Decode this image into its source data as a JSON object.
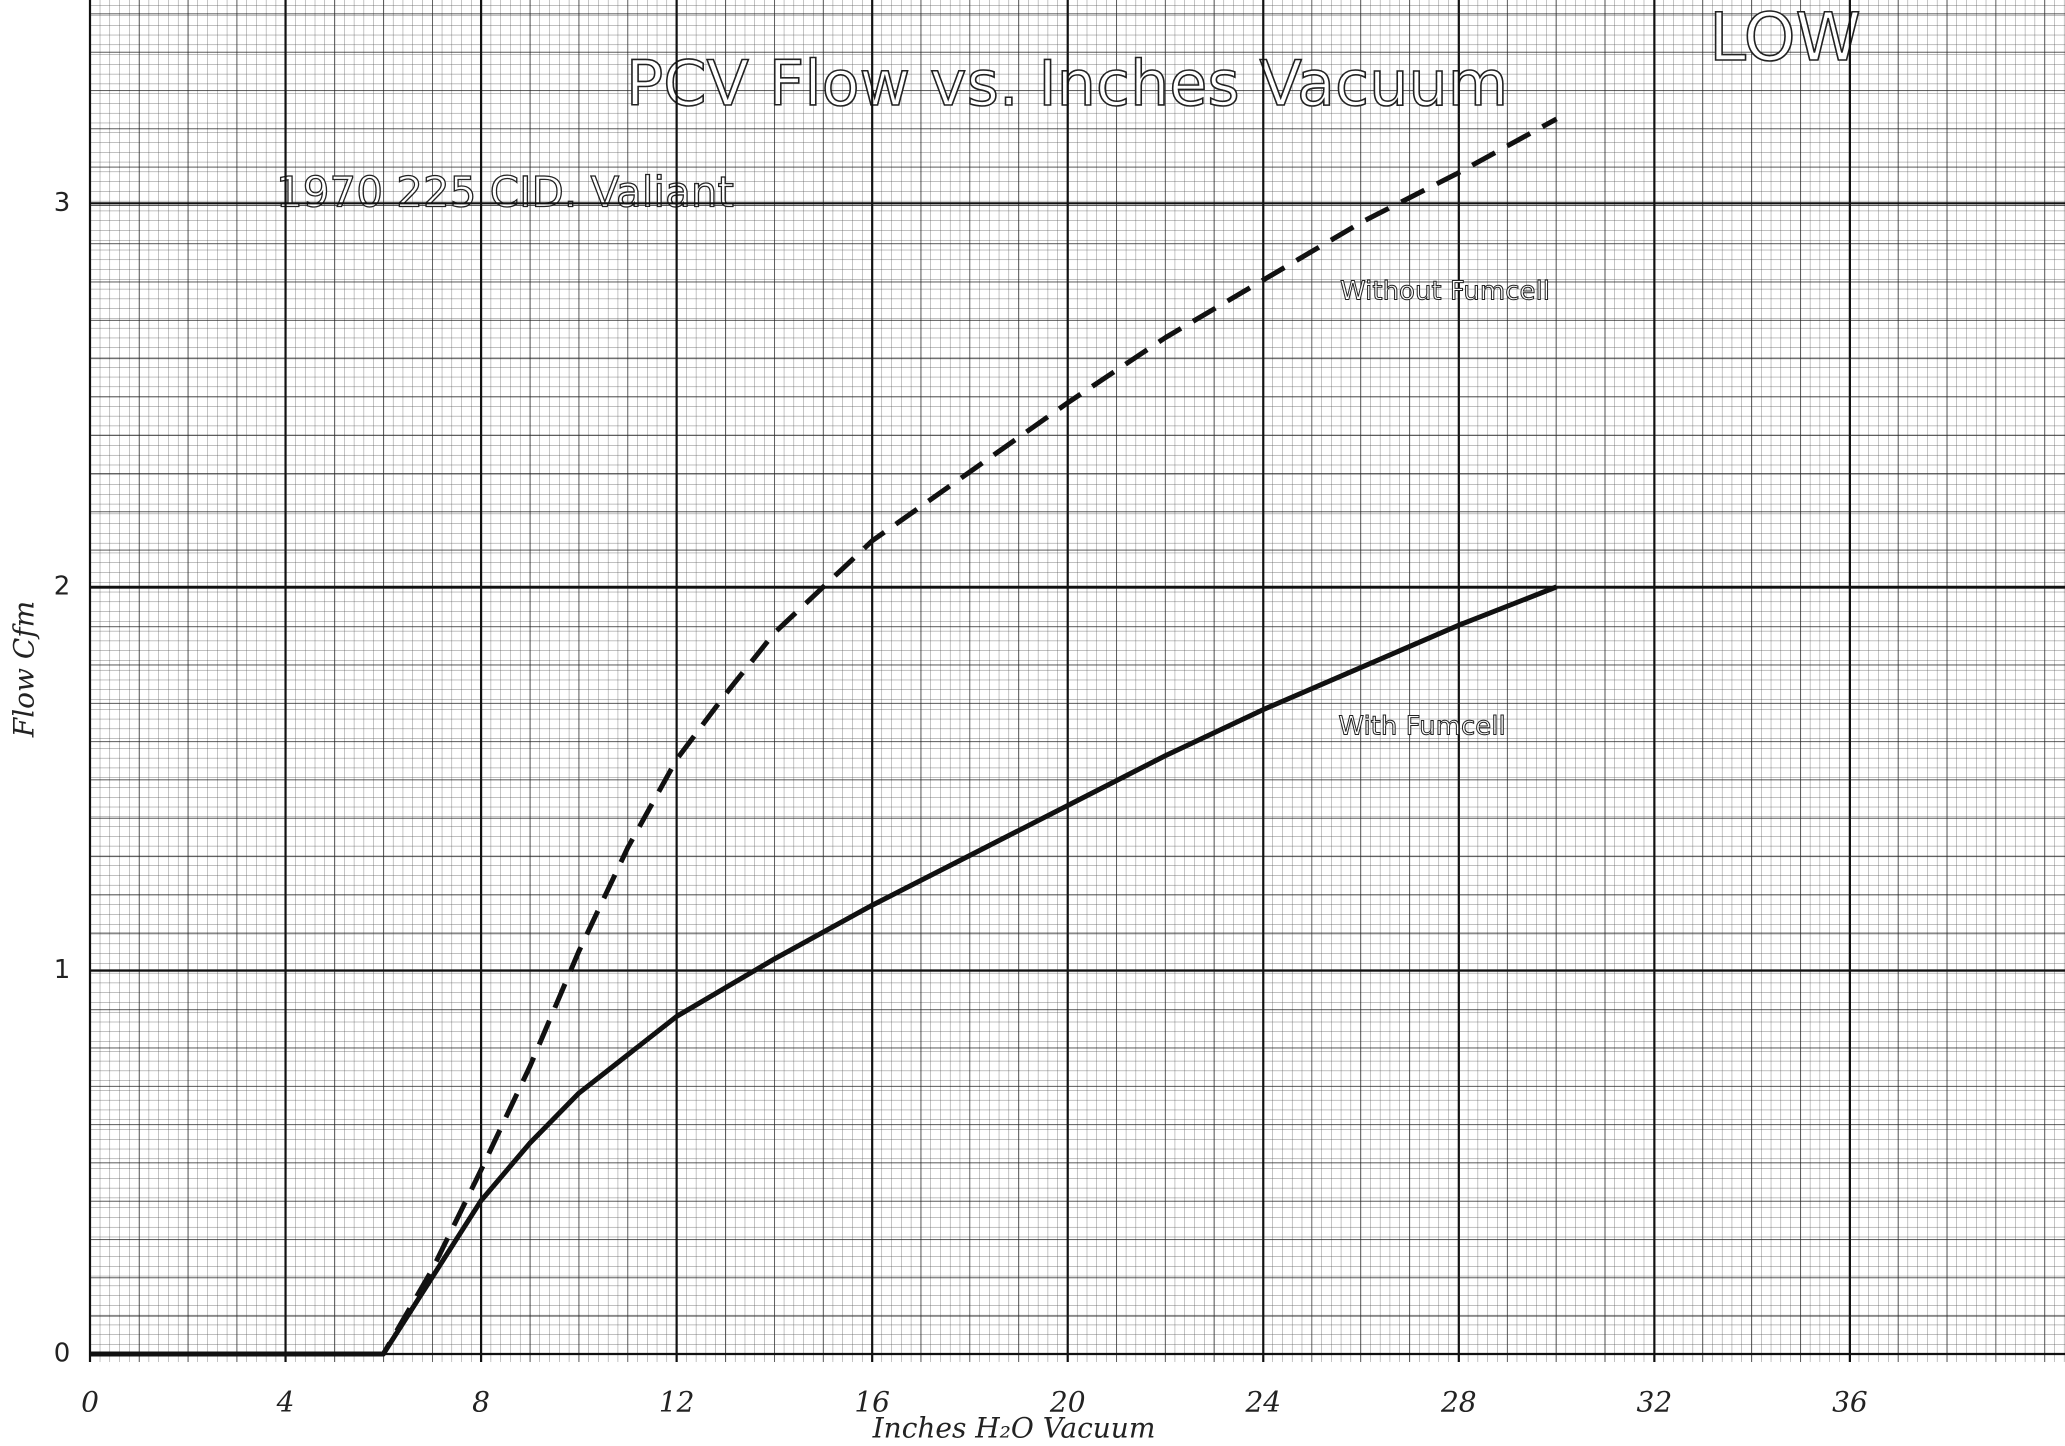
{
  "chart_data": {
    "type": "line",
    "title": "PCV Flow vs. Inches Vacuum",
    "subtitle": "1970 225 CID. Valiant",
    "annotation": "LOW",
    "x_label": "Inches H₂O Vacuum",
    "y_label": "Flow Cfm",
    "xlim": [
      0,
      40.4
    ],
    "xticks": [
      0,
      4,
      8,
      12,
      16,
      20,
      24,
      28,
      32,
      36
    ],
    "ylim": [
      0,
      3.53
    ],
    "yticks": [
      0,
      1,
      2,
      3
    ],
    "grid": true,
    "series": [
      {
        "name": "Without Fumcell",
        "color": "#111111",
        "dashed": true,
        "x": [
          0,
          6,
          7,
          8,
          9,
          10,
          11,
          12,
          13,
          14,
          16,
          18,
          20,
          22,
          24,
          26,
          28,
          30
        ],
        "values": [
          0,
          0,
          0.22,
          0.48,
          0.75,
          1.05,
          1.32,
          1.55,
          1.72,
          1.88,
          2.12,
          2.3,
          2.48,
          2.65,
          2.8,
          2.95,
          3.08,
          3.22
        ]
      },
      {
        "name": "With Fumcell",
        "color": "#111111",
        "dashed": false,
        "x": [
          0,
          6,
          7,
          8,
          9,
          10,
          12,
          14,
          16,
          18,
          20,
          22,
          24,
          26,
          28,
          30
        ],
        "values": [
          0,
          0,
          0.2,
          0.4,
          0.55,
          0.68,
          0.88,
          1.03,
          1.17,
          1.3,
          1.43,
          1.56,
          1.68,
          1.79,
          1.9,
          2.0
        ]
      }
    ]
  }
}
